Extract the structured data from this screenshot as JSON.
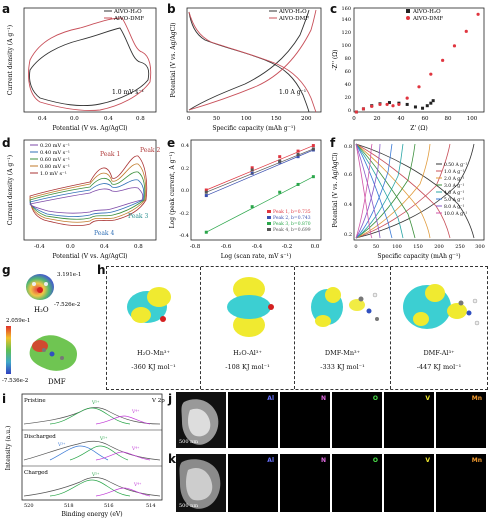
{
  "panel_labels": [
    "a",
    "b",
    "c",
    "d",
    "e",
    "f",
    "g",
    "h",
    "i",
    "j",
    "k"
  ],
  "panels": {
    "a": {
      "xlabel": "Potential (V vs. Ag/AgCl)",
      "ylabel": "Current density (A g⁻¹)",
      "xticks": [
        "0.4",
        "0.0",
        "0.4",
        "0.8"
      ],
      "legend": [
        "AlVO-H₂O",
        "AlVO-DMF"
      ],
      "annotation": "1.0 mV s⁻¹"
    },
    "b": {
      "xlabel": "Specific capacity (mAh g⁻¹)",
      "ylabel": "Potential (V vs. Ag/AgCl)",
      "xticks": [
        "0",
        "50",
        "100",
        "150",
        "200"
      ],
      "legend": [
        "AlVO-H₂O",
        "AlVO-DMF"
      ],
      "annotation": "1.0 A g⁻¹"
    },
    "c": {
      "xlabel": "Z' (Ω)",
      "ylabel": "-Z'' (Ω)",
      "xticks": [
        "0",
        "20",
        "40",
        "60",
        "80",
        "100"
      ],
      "yticks": [
        "0",
        "20",
        "40",
        "60",
        "80",
        "100",
        "120",
        "140",
        "160"
      ],
      "legend": [
        "AlVO-H₂O",
        "AlVO-DMF"
      ]
    },
    "d": {
      "xlabel": "Potential (V vs. Ag/AgCl)",
      "ylabel": "Current density (A g⁻¹)",
      "xticks": [
        "-0.4",
        "0.0",
        "0.4",
        "0.8"
      ],
      "legend": [
        "0.20 mV s⁻¹",
        "0.40 mV s⁻¹",
        "0.60 mV s⁻¹",
        "0.80 mV s⁻¹",
        "1.0 mV s⁻¹"
      ],
      "peaks": [
        "Peak 1",
        "Peak 2",
        "Peak 3",
        "Peak 4"
      ]
    },
    "e": {
      "xlabel": "Log (scan rate, mV s⁻¹)",
      "ylabel": "Log (peak current, A g⁻¹)",
      "xticks": [
        "-0.8",
        "-0.6",
        "-0.4",
        "-0.2",
        "0.0"
      ],
      "yticks": [
        "0.4",
        "0.2",
        "0.0",
        "-0.2",
        "-0.4"
      ],
      "legend": [
        "Peak 1, b=0.735",
        "Peak 2, b=0.743",
        "Peak 3, b=0.870",
        "Peak 4, b=0.699"
      ]
    },
    "f": {
      "xlabel": "Specific capacity (mAh g⁻¹)",
      "ylabel": "Potential (V vs. Ag/AgCl)",
      "xticks": [
        "0",
        "50",
        "100",
        "150",
        "200",
        "250",
        "300"
      ],
      "yticks": [
        "0.2",
        "0.4",
        "0.6",
        "0.8"
      ],
      "legend": [
        "0.50 A g⁻¹",
        "1.0 A g⁻¹",
        "2.0 A g⁻¹",
        "3.0 A g⁻¹",
        "4.0 A g⁻¹",
        "5.0 A g⁻¹",
        "8.0 A g⁻¹",
        "10.0 A g⁻¹"
      ]
    },
    "g": {
      "h2o_max": "3.191e-1",
      "h2o_min": "-7.526e-2",
      "h2o_label": "H₂O",
      "dmf_max": "2.059e-1",
      "dmf_min": "-7.536e-2",
      "dmf_label": "DMF"
    },
    "h": {
      "items": [
        {
          "name": "H₂O-Mn³⁺",
          "energy": "-360 KJ mol⁻¹"
        },
        {
          "name": "H₂O-Al³⁺",
          "energy": "-108 KJ mol⁻¹"
        },
        {
          "name": "DMF-Mn³⁺",
          "energy": "-333 KJ mol⁻¹"
        },
        {
          "name": "DMF-Al³⁺",
          "energy": "-447 KJ mol⁻¹"
        }
      ]
    },
    "i": {
      "xlabel": "Binding energy (eV)",
      "ylabel": "Intensity (a.u.)",
      "xticks": [
        "520",
        "518",
        "516",
        "514"
      ],
      "corner": "V 2p",
      "rows": [
        {
          "name": "Pristine",
          "tags": [
            "V⁵⁺",
            "V⁴⁺"
          ]
        },
        {
          "name": "Discharged",
          "tags": [
            "V³⁺",
            "V⁵⁺",
            "V⁴⁺"
          ]
        },
        {
          "name": "Charged",
          "tags": [
            "V⁵⁺",
            "V⁴⁺"
          ]
        }
      ]
    },
    "j": {
      "elements": [
        "Al",
        "N",
        "O",
        "V",
        "Mn"
      ],
      "scale": "500 nm"
    },
    "k": {
      "elements": [
        "Al",
        "N",
        "O",
        "V",
        "Mn"
      ],
      "scale": "500 nm"
    }
  },
  "colors": {
    "h2o": "#333333",
    "dmf": "#c8505a",
    "al": "#3a43d0",
    "n": "#c03ad6",
    "o": "#25c92c",
    "v": "#e7e02c",
    "mn": "#f28a1e"
  },
  "chart_data": [
    {
      "panel": "a",
      "type": "line",
      "xlabel": "Potential (V vs. Ag/AgCl)",
      "ylabel": "Current density (A g⁻¹)",
      "xlim": [
        -0.7,
        0.85
      ],
      "series": [
        {
          "name": "AlVO-H₂O",
          "x": [
            -0.7,
            -0.5,
            -0.3,
            -0.1,
            0.1,
            0.3,
            0.5,
            0.7,
            0.75,
            0.7,
            0.5,
            0.3,
            0.1,
            -0.1,
            -0.3,
            -0.5,
            -0.7
          ],
          "y": [
            0.0,
            0.2,
            0.35,
            0.5,
            0.7,
            0.9,
            1.3,
            1.6,
            1.2,
            0.2,
            -0.2,
            -0.4,
            -0.6,
            -0.8,
            -0.9,
            -1.1,
            -0.6
          ]
        },
        {
          "name": "AlVO-DMF",
          "x": [
            -0.7,
            -0.5,
            -0.3,
            -0.1,
            0.1,
            0.3,
            0.5,
            0.7,
            0.75,
            0.7,
            0.5,
            0.3,
            0.1,
            -0.1,
            -0.3,
            -0.5,
            -0.7
          ],
          "y": [
            0.1,
            0.4,
            0.7,
            1.0,
            1.3,
            1.6,
            2.0,
            2.1,
            1.4,
            0.4,
            -0.4,
            -0.8,
            -1.1,
            -1.3,
            -1.4,
            -1.5,
            -0.8
          ]
        }
      ]
    },
    {
      "panel": "b",
      "type": "line",
      "xlabel": "Specific capacity (mAh g⁻¹)",
      "ylabel": "Potential (V vs. Ag/AgCl)",
      "xlim": [
        0,
        230
      ],
      "series": [
        {
          "name": "AlVO-H₂O",
          "x": [
            0,
            20,
            50,
            80,
            110,
            140,
            170,
            200
          ],
          "y": [
            0.8,
            0.55,
            0.45,
            0.38,
            0.3,
            0.2,
            0.05,
            -0.4
          ]
        },
        {
          "name": "AlVO-DMF",
          "x": [
            0,
            20,
            50,
            80,
            110,
            140,
            170,
            200,
            225
          ],
          "y": [
            0.8,
            0.6,
            0.5,
            0.42,
            0.35,
            0.26,
            0.15,
            0.0,
            -0.4
          ]
        }
      ]
    },
    {
      "panel": "c",
      "type": "scatter",
      "xlabel": "Z' (Ω)",
      "ylabel": "-Z'' (Ω)",
      "xlim": [
        0,
        110
      ],
      "ylim": [
        0,
        165
      ],
      "series": [
        {
          "name": "AlVO-H₂O",
          "x": [
            2,
            8,
            15,
            22,
            30,
            38,
            45,
            52,
            58,
            62,
            65,
            67
          ],
          "y": [
            0,
            5,
            10,
            13,
            15,
            14,
            12,
            8,
            6,
            10,
            14,
            18
          ]
        },
        {
          "name": "AlVO-DMF",
          "x": [
            2,
            8,
            15,
            22,
            28,
            33,
            38,
            45,
            55,
            65,
            75,
            85,
            95,
            105
          ],
          "y": [
            0,
            5,
            9,
            12,
            12,
            10,
            12,
            22,
            40,
            60,
            82,
            105,
            128,
            155
          ]
        }
      ]
    },
    {
      "panel": "e",
      "type": "scatter",
      "xlabel": "Log (scan rate, mV s⁻¹)",
      "ylabel": "Log (peak current, A g⁻¹)",
      "xlim": [
        -0.8,
        0.05
      ],
      "ylim": [
        -0.45,
        0.45
      ],
      "series": [
        {
          "name": "Peak 1, b=0.735",
          "x": [
            -0.7,
            -0.4,
            -0.22,
            -0.1,
            0.0
          ],
          "y": [
            0.0,
            0.2,
            0.3,
            0.35,
            0.4
          ]
        },
        {
          "name": "Peak 2, b=0.743",
          "x": [
            -0.7,
            -0.4,
            -0.22,
            -0.1,
            0.0
          ],
          "y": [
            -0.05,
            0.15,
            0.25,
            0.3,
            0.36
          ]
        },
        {
          "name": "Peak 3, b=0.870",
          "x": [
            -0.7,
            -0.4,
            -0.22,
            -0.1,
            0.0
          ],
          "y": [
            -0.38,
            -0.15,
            -0.02,
            0.05,
            0.12
          ]
        },
        {
          "name": "Peak 4, b=0.699",
          "x": [
            -0.7,
            -0.4,
            -0.22,
            -0.1,
            0.0
          ],
          "y": [
            -0.02,
            0.18,
            0.26,
            0.32,
            0.37
          ]
        }
      ]
    }
  ]
}
